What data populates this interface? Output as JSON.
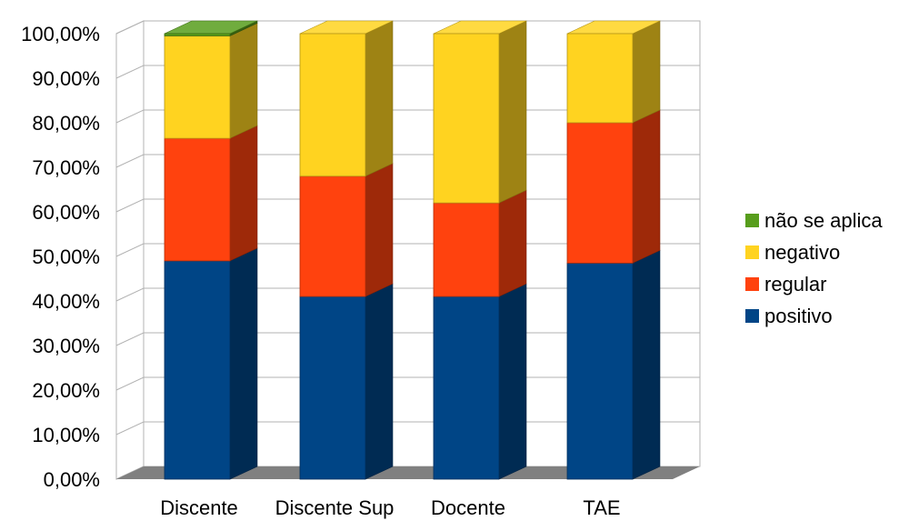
{
  "chart_data": {
    "type": "bar",
    "stacked": true,
    "three_d": true,
    "categories": [
      "Discente",
      "Discente Sup",
      "Docente",
      "TAE"
    ],
    "series": [
      {
        "name": "positivo",
        "color": "#004586",
        "values": [
          49,
          41,
          41,
          48.5
        ]
      },
      {
        "name": "regular",
        "color": "#ff420e",
        "values": [
          27.5,
          27,
          21,
          31.5
        ]
      },
      {
        "name": "negativo",
        "color": "#ffd320",
        "values": [
          23,
          32,
          38,
          20
        ]
      },
      {
        "name": "não se aplica",
        "color": "#579d1c",
        "values": [
          0.5,
          0,
          0,
          0
        ]
      }
    ],
    "y_ticks": [
      "0,00%",
      "10,00%",
      "20,00%",
      "30,00%",
      "40,00%",
      "50,00%",
      "60,00%",
      "70,00%",
      "80,00%",
      "90,00%",
      "100,00%"
    ],
    "ylim": [
      0,
      100
    ],
    "grid": true,
    "legend_position": "right",
    "floor_color": "#808080"
  }
}
